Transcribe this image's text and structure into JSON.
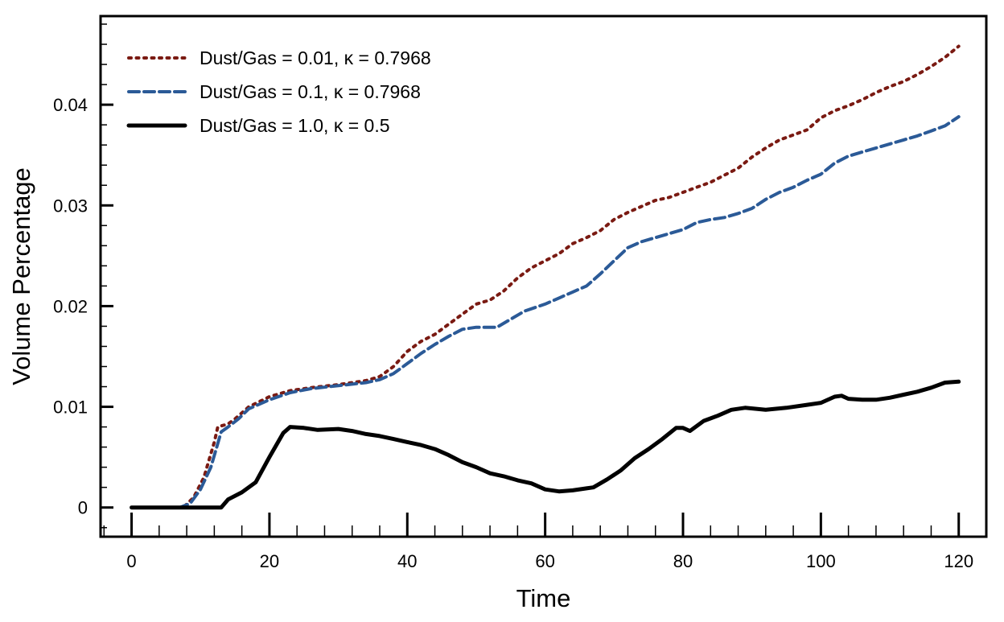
{
  "chart_data": {
    "type": "line",
    "title": "",
    "xlabel": "Time",
    "ylabel": "Volume Percentage",
    "xlim": [
      -4.5,
      124
    ],
    "ylim": [
      -0.0029,
      0.0488
    ],
    "x_ticks": [
      0,
      20,
      40,
      60,
      80,
      100,
      120
    ],
    "x_tick_labels": [
      "0",
      "20",
      "40",
      "60",
      "80",
      "100",
      "120"
    ],
    "y_ticks": [
      0,
      0.01,
      0.02,
      0.03,
      0.04
    ],
    "y_tick_labels": [
      "0",
      "0.01",
      "0.02",
      "0.03",
      "0.04"
    ],
    "grid": false,
    "legend_position": "top-left",
    "series": [
      {
        "name": "Dust/Gas = 0.01, κ = 0.7968",
        "color": "#7a1a12",
        "style": "dotted",
        "points": [
          [
            0,
            0
          ],
          [
            7.5,
            0
          ],
          [
            9,
            0.001
          ],
          [
            10.5,
            0.003
          ],
          [
            12,
            0.0065
          ],
          [
            12.5,
            0.008
          ],
          [
            14,
            0.0083
          ],
          [
            15,
            0.0088
          ],
          [
            17,
            0.01
          ],
          [
            20,
            0.011
          ],
          [
            23,
            0.0116
          ],
          [
            26,
            0.0119
          ],
          [
            30,
            0.0122
          ],
          [
            34,
            0.0126
          ],
          [
            36,
            0.013
          ],
          [
            38,
            0.014
          ],
          [
            40,
            0.0155
          ],
          [
            42,
            0.0165
          ],
          [
            44,
            0.0172
          ],
          [
            46,
            0.0182
          ],
          [
            48,
            0.0192
          ],
          [
            50,
            0.0202
          ],
          [
            52,
            0.0206
          ],
          [
            54,
            0.0215
          ],
          [
            56,
            0.0228
          ],
          [
            58,
            0.0238
          ],
          [
            60,
            0.0245
          ],
          [
            62,
            0.0252
          ],
          [
            64,
            0.0262
          ],
          [
            66,
            0.0268
          ],
          [
            68,
            0.0275
          ],
          [
            70,
            0.0286
          ],
          [
            72,
            0.0293
          ],
          [
            74,
            0.0299
          ],
          [
            76,
            0.0305
          ],
          [
            78,
            0.0308
          ],
          [
            80,
            0.0313
          ],
          [
            82,
            0.0318
          ],
          [
            84,
            0.0323
          ],
          [
            86,
            0.033
          ],
          [
            88,
            0.0337
          ],
          [
            90,
            0.0348
          ],
          [
            92,
            0.0357
          ],
          [
            94,
            0.0365
          ],
          [
            96,
            0.037
          ],
          [
            98,
            0.0375
          ],
          [
            100,
            0.0387
          ],
          [
            102,
            0.0394
          ],
          [
            104,
            0.0399
          ],
          [
            106,
            0.0405
          ],
          [
            108,
            0.0412
          ],
          [
            110,
            0.0418
          ],
          [
            112,
            0.0423
          ],
          [
            114,
            0.043
          ],
          [
            116,
            0.0438
          ],
          [
            118,
            0.0447
          ],
          [
            120,
            0.0458
          ]
        ]
      },
      {
        "name": "Dust/Gas = 0.1, κ = 0.7968",
        "color": "#2b5a97",
        "style": "dashed",
        "points": [
          [
            0,
            0
          ],
          [
            7,
            0
          ],
          [
            8.5,
            0.0004
          ],
          [
            10,
            0.0018
          ],
          [
            11.5,
            0.004
          ],
          [
            13,
            0.0075
          ],
          [
            14,
            0.008
          ],
          [
            15.5,
            0.0088
          ],
          [
            17,
            0.0098
          ],
          [
            20,
            0.0107
          ],
          [
            23,
            0.0114
          ],
          [
            26,
            0.0118
          ],
          [
            30,
            0.0121
          ],
          [
            34,
            0.0124
          ],
          [
            36,
            0.0127
          ],
          [
            38,
            0.0133
          ],
          [
            40,
            0.0143
          ],
          [
            42,
            0.0153
          ],
          [
            44,
            0.0162
          ],
          [
            46,
            0.017
          ],
          [
            48,
            0.0177
          ],
          [
            50,
            0.0179
          ],
          [
            53,
            0.0179
          ],
          [
            55,
            0.0187
          ],
          [
            57,
            0.0195
          ],
          [
            60,
            0.0202
          ],
          [
            62,
            0.0208
          ],
          [
            64,
            0.0214
          ],
          [
            66,
            0.022
          ],
          [
            68,
            0.0232
          ],
          [
            70,
            0.0245
          ],
          [
            72,
            0.0258
          ],
          [
            74,
            0.0264
          ],
          [
            76,
            0.0268
          ],
          [
            78,
            0.0272
          ],
          [
            80,
            0.0276
          ],
          [
            82,
            0.0283
          ],
          [
            84,
            0.0286
          ],
          [
            86,
            0.0288
          ],
          [
            88,
            0.0292
          ],
          [
            90,
            0.0297
          ],
          [
            92,
            0.0306
          ],
          [
            94,
            0.0313
          ],
          [
            96,
            0.0318
          ],
          [
            98,
            0.0325
          ],
          [
            100,
            0.0331
          ],
          [
            102,
            0.0342
          ],
          [
            104,
            0.0349
          ],
          [
            106,
            0.0353
          ],
          [
            108,
            0.0357
          ],
          [
            110,
            0.0361
          ],
          [
            112,
            0.0365
          ],
          [
            114,
            0.0369
          ],
          [
            116,
            0.0374
          ],
          [
            118,
            0.0379
          ],
          [
            120,
            0.0388
          ]
        ]
      },
      {
        "name": "Dust/Gas = 1.0, κ = 0.5",
        "color": "#000000",
        "style": "solid",
        "points": [
          [
            0,
            0
          ],
          [
            13,
            0
          ],
          [
            14,
            0.0008
          ],
          [
            16,
            0.0015
          ],
          [
            18,
            0.0025
          ],
          [
            20,
            0.005
          ],
          [
            22,
            0.0074
          ],
          [
            23,
            0.008
          ],
          [
            25,
            0.0079
          ],
          [
            27,
            0.0077
          ],
          [
            30,
            0.0078
          ],
          [
            32,
            0.0076
          ],
          [
            34,
            0.0073
          ],
          [
            36,
            0.0071
          ],
          [
            38,
            0.0068
          ],
          [
            40,
            0.0065
          ],
          [
            42,
            0.0062
          ],
          [
            44,
            0.0058
          ],
          [
            46,
            0.0052
          ],
          [
            48,
            0.0045
          ],
          [
            50,
            0.004
          ],
          [
            52,
            0.0034
          ],
          [
            54,
            0.0031
          ],
          [
            56,
            0.0027
          ],
          [
            58,
            0.0024
          ],
          [
            60,
            0.0018
          ],
          [
            62,
            0.0016
          ],
          [
            64,
            0.0017
          ],
          [
            66,
            0.0019
          ],
          [
            67,
            0.002
          ],
          [
            69,
            0.0028
          ],
          [
            71,
            0.0037
          ],
          [
            73,
            0.0049
          ],
          [
            75,
            0.0058
          ],
          [
            77,
            0.0068
          ],
          [
            79,
            0.0079
          ],
          [
            80,
            0.0079
          ],
          [
            81,
            0.0076
          ],
          [
            83,
            0.0086
          ],
          [
            85,
            0.0091
          ],
          [
            87,
            0.0097
          ],
          [
            89,
            0.0099
          ],
          [
            92,
            0.0097
          ],
          [
            95,
            0.0099
          ],
          [
            98,
            0.0102
          ],
          [
            100,
            0.0104
          ],
          [
            102,
            0.011
          ],
          [
            103,
            0.0111
          ],
          [
            104,
            0.0108
          ],
          [
            106,
            0.0107
          ],
          [
            108,
            0.0107
          ],
          [
            110,
            0.0109
          ],
          [
            112,
            0.0112
          ],
          [
            114,
            0.0115
          ],
          [
            116,
            0.0119
          ],
          [
            118,
            0.0124
          ],
          [
            120,
            0.0125
          ]
        ]
      }
    ]
  }
}
